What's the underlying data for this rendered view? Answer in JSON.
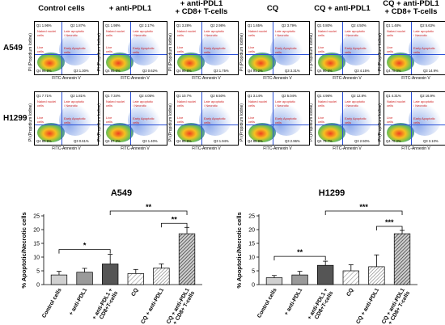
{
  "flow": {
    "columns": [
      "Control cells",
      "+ anti-PDL1",
      "+ anti-PDL1\n+ CD8+ T-cells",
      "CQ",
      "CQ + anti-PDL1",
      "CQ + anti-PDL1\n+ CD8+ T-cells"
    ],
    "rows": [
      {
        "name": "A549",
        "panels": [
          {
            "q1": "Q1  1.96%",
            "q2": "Q2  1.87%",
            "q3": "Q3  1.30%",
            "q4": "Q4  94.9%"
          },
          {
            "q1": "Q1  1.98%",
            "q2": "Q2  2.17%",
            "q3": "Q3  0.62%",
            "q4": "Q4  95.6%"
          },
          {
            "q1": "Q1  3.28%",
            "q2": "Q2  2.98%",
            "q3": "Q3  1.75%",
            "q4": "Q4  90.8%"
          },
          {
            "q1": "Q1  1.65%",
            "q2": "Q2  3.79%",
            "q3": "Q3  3.31%",
            "q4": "Q4  91.2%"
          },
          {
            "q1": "Q1  0.80%",
            "q2": "Q2  4.50%",
            "q3": "Q3  4.15%",
            "q4": "Q4  90.6%"
          },
          {
            "q1": "Q1  1.48%",
            "q2": "Q2  5.63%",
            "q3": "Q3  14.9%",
            "q4": "Q4  78.0%"
          }
        ]
      },
      {
        "name": "H1299",
        "panels": [
          {
            "q1": "Q1  7.71%",
            "q2": "Q2  1.81%",
            "q3": "Q3  0.61%",
            "q4": "Q4  89.9%"
          },
          {
            "q1": "Q1  7.34%",
            "q2": "Q2  4.05%",
            "q3": "Q3  1.40%",
            "q4": "Q4  87.2%"
          },
          {
            "q1": "Q1  10.7%",
            "q2": "Q2  6.50%",
            "q3": "Q3  1.94%",
            "q4": "Q4  80.8%"
          },
          {
            "q1": "Q1  3.14%",
            "q2": "Q2  5.04%",
            "q3": "Q3  2.96%",
            "q4": "Q4  88.9%"
          },
          {
            "q1": "Q1  4.96%",
            "q2": "Q2  12.8%",
            "q3": "Q3  2.50%",
            "q4": "Q4  79.7%"
          },
          {
            "q1": "Q1  4.31%",
            "q2": "Q2  16.9%",
            "q3": "Q3  3.10%",
            "q4": "Q4  76.2%"
          }
        ]
      }
    ],
    "quadrant_labels": {
      "q1": "Naked nuclei\ncells",
      "q2": "Late apoptotic\n/ Necrotic",
      "q3": "Early Apoptotic\ncells",
      "q4": "Live\ncells"
    },
    "x_axis": "FITC-Annexin V",
    "y_axis": "PI (Propidium Iodine)"
  },
  "chart_data": [
    {
      "type": "bar",
      "title": "A549",
      "ylabel": "% Apoptotic/Necrotic cells",
      "ylim": [
        0,
        25
      ],
      "yticks": [
        0,
        5,
        10,
        15,
        20,
        25
      ],
      "categories": [
        "Control cells",
        "+ anti-PDL1",
        "+ anti-PDL1 +\nCD8+T-cells",
        "CQ",
        "CQ + anti-PDL1",
        "CQ + anti-PDL1\n+ CD8+ T-cells"
      ],
      "values": [
        3.5,
        4.5,
        7.5,
        4.0,
        6.0,
        18.5
      ],
      "errors": [
        1.3,
        1.4,
        3.5,
        1.5,
        1.5,
        2.3
      ],
      "fills": [
        "#d0d0d0",
        "#9a9a9a",
        "#555555",
        "#ffffff",
        "#ffffff",
        "#ffffff"
      ],
      "hatch": [
        "none",
        "none",
        "none",
        "light-diag",
        "dense-diag",
        "dark-diag"
      ],
      "significance": [
        {
          "from": 0,
          "to": 2,
          "label": "*"
        },
        {
          "from": 2,
          "to": 5,
          "label": "**"
        },
        {
          "from": 4,
          "to": 5,
          "label": "**"
        }
      ]
    },
    {
      "type": "bar",
      "title": "H1299",
      "ylabel": "% Apoptotic/Necrotic cells",
      "ylim": [
        0,
        25
      ],
      "yticks": [
        0,
        5,
        10,
        15,
        20,
        25
      ],
      "categories": [
        "Control cells",
        "+ anti-PDL1",
        "+ anti-PDL1 +\nCD8+T-cells",
        "CQ",
        "CQ + anti-PDL1",
        "CQ + anti-PDL1\n+ CD8+ T-cells"
      ],
      "values": [
        2.5,
        3.5,
        7.0,
        5.0,
        6.5,
        18.5
      ],
      "errors": [
        0.8,
        1.3,
        1.5,
        2.2,
        4.3,
        1.2
      ],
      "fills": [
        "#d0d0d0",
        "#9a9a9a",
        "#555555",
        "#ffffff",
        "#ffffff",
        "#ffffff"
      ],
      "hatch": [
        "none",
        "none",
        "none",
        "light-diag",
        "dense-diag",
        "dark-diag"
      ],
      "significance": [
        {
          "from": 0,
          "to": 2,
          "label": "**"
        },
        {
          "from": 2,
          "to": 5,
          "label": "***"
        },
        {
          "from": 4,
          "to": 5,
          "label": "***"
        }
      ]
    }
  ]
}
